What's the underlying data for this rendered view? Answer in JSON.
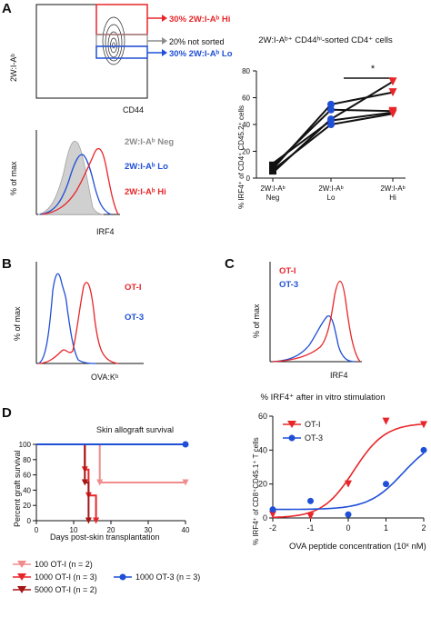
{
  "panels": {
    "A": "A",
    "B": "B",
    "C": "C",
    "D": "D"
  },
  "panelA": {
    "flow": {
      "ylabel": "2W:I-Aᵇ",
      "xlabel": "CD44",
      "gate_hi": "30% 2W:I-Aᵇ Hi",
      "gate_mid": "20% not sorted",
      "gate_lo": "30% 2W:I-Aᵇ Lo",
      "colors": {
        "hi": "#e8262a",
        "mid": "#8c8c8c",
        "lo": "#1f4fd6"
      }
    },
    "hist": {
      "ylabel": "% of max",
      "xlabel": "IRF4",
      "legend": [
        "2W:I-Aᵇ Neg",
        "2W:I-Aᵇ Lo",
        "2W:I-Aᵇ Hi"
      ],
      "legend_colors": [
        "#8c8c8c",
        "#1f4fd6",
        "#e8262a"
      ]
    }
  },
  "panelA_chart": {
    "title": "2W:I-Aᵇ⁺ CD44ʰⁱ-sorted CD4⁺ cells",
    "ylabel": "% IRF4⁺ of CD4⁺ CD45.2⁺ cells",
    "significance": "*",
    "categories": [
      {
        "line1": "2W:I-Aᵇ",
        "line2": "Neg"
      },
      {
        "line1": "2W:I-Aᵇ",
        "line2": "Lo"
      },
      {
        "line1": "2W:I-Aᵇ",
        "line2": "Hi"
      }
    ]
  },
  "panelB": {
    "ylabel": "% of max",
    "xlabel": "OVA:Kᵇ",
    "legend": [
      "OT-I",
      "OT-3"
    ],
    "legend_colors": [
      "#e8262a",
      "#1f4fd6"
    ]
  },
  "panelC": {
    "hist": {
      "ylabel": "% of max",
      "xlabel": "IRF4",
      "legend": [
        "OT-I",
        "OT-3"
      ],
      "legend_colors": [
        "#e8262a",
        "#1f4fd6"
      ]
    },
    "title": "% IRF4⁺ after in vitro stimulation",
    "ylabel": "% IRF4⁺ of CD8⁺CD45.1⁺ T cells",
    "xlabel": "OVA peptide concentration (10ˣ nM)",
    "legend": [
      "OT-I",
      "OT-3"
    ]
  },
  "panelD": {
    "title": "Skin allograft survival",
    "ylabel": "Percent graft survival",
    "xlabel": "Days post-skin transplantation",
    "legend": [
      {
        "label": "100 OT-I (n = 2)",
        "color": "#f08c8c"
      },
      {
        "label": "1000 OT-I (n = 3)",
        "color": "#e8262a"
      },
      {
        "label": "5000 OT-I (n = 2)",
        "color": "#a51515"
      },
      {
        "label": "1000 OT-3 (n = 3)",
        "color": "#1f4fd6"
      }
    ]
  },
  "chart_data": [
    {
      "type": "line",
      "title": "2W:I-Aᵇ⁺ CD44ʰⁱ-sorted CD4⁺ cells",
      "ylabel": "% IRF4⁺ of CD4⁺ CD45.2⁺ cells",
      "categories": [
        "2W:I-Ab Neg",
        "2W:I-Ab Lo",
        "2W:I-Ab Hi"
      ],
      "ylim": [
        0,
        80
      ],
      "yticks": [
        0,
        20,
        40,
        60,
        80
      ],
      "series": [
        {
          "values": [
            4,
            44,
            72
          ]
        },
        {
          "values": [
            7,
            55,
            64
          ]
        },
        {
          "values": [
            9,
            51,
            50
          ]
        },
        {
          "values": [
            11,
            43,
            49
          ]
        },
        {
          "values": [
            6,
            40,
            48
          ]
        }
      ],
      "colors": {
        "line": "#111111",
        "lo": "#1f4fd6",
        "hi": "#e8262a",
        "neg": "#111111"
      },
      "annotation": "*"
    },
    {
      "type": "scatter",
      "title": "% IRF4⁺ after in vitro stimulation",
      "xlabel": "OVA peptide concentration (10ˣ nM)",
      "ylabel": "% IRF4⁺ of CD8⁺CD45.1⁺ T cells",
      "xlim": [
        -2,
        2
      ],
      "ylim": [
        0,
        60
      ],
      "xticks": [
        -2,
        -1,
        0,
        1,
        2
      ],
      "yticks": [
        0,
        20,
        40,
        60
      ],
      "series": [
        {
          "name": "OT-I",
          "color": "#e8262a",
          "marker": "triangle",
          "x": [
            -2,
            -1,
            0,
            1,
            2
          ],
          "y": [
            2,
            1,
            20,
            57,
            55
          ]
        },
        {
          "name": "OT-3",
          "color": "#1f4fd6",
          "marker": "circle",
          "x": [
            -2,
            -1,
            0,
            1,
            2
          ],
          "y": [
            5,
            10,
            2,
            20,
            40
          ]
        }
      ]
    },
    {
      "type": "line",
      "title": "Skin allograft survival",
      "xlabel": "Days post-skin transplantation",
      "ylabel": "Percent graft survival",
      "xlim": [
        0,
        40
      ],
      "ylim": [
        0,
        100
      ],
      "xticks": [
        0,
        10,
        20,
        30,
        40
      ],
      "yticks": [
        0,
        20,
        40,
        60,
        80,
        100
      ],
      "series": [
        {
          "name": "100 OT-I (n = 2)",
          "color": "#f08c8c",
          "x": [
            0,
            17,
            17,
            40
          ],
          "y": [
            100,
            100,
            50,
            50
          ]
        },
        {
          "name": "1000 OT-I (n = 3)",
          "color": "#e8262a",
          "x": [
            0,
            13,
            13,
            14,
            14,
            16,
            16
          ],
          "y": [
            100,
            100,
            67,
            67,
            33,
            33,
            0
          ]
        },
        {
          "name": "5000 OT-I (n = 2)",
          "color": "#a51515",
          "x": [
            0,
            13,
            13,
            14,
            14
          ],
          "y": [
            100,
            100,
            50,
            50,
            0
          ]
        },
        {
          "name": "1000 OT-3 (n = 3)",
          "color": "#1f4fd6",
          "x": [
            0,
            40
          ],
          "y": [
            100,
            100
          ]
        }
      ]
    }
  ]
}
